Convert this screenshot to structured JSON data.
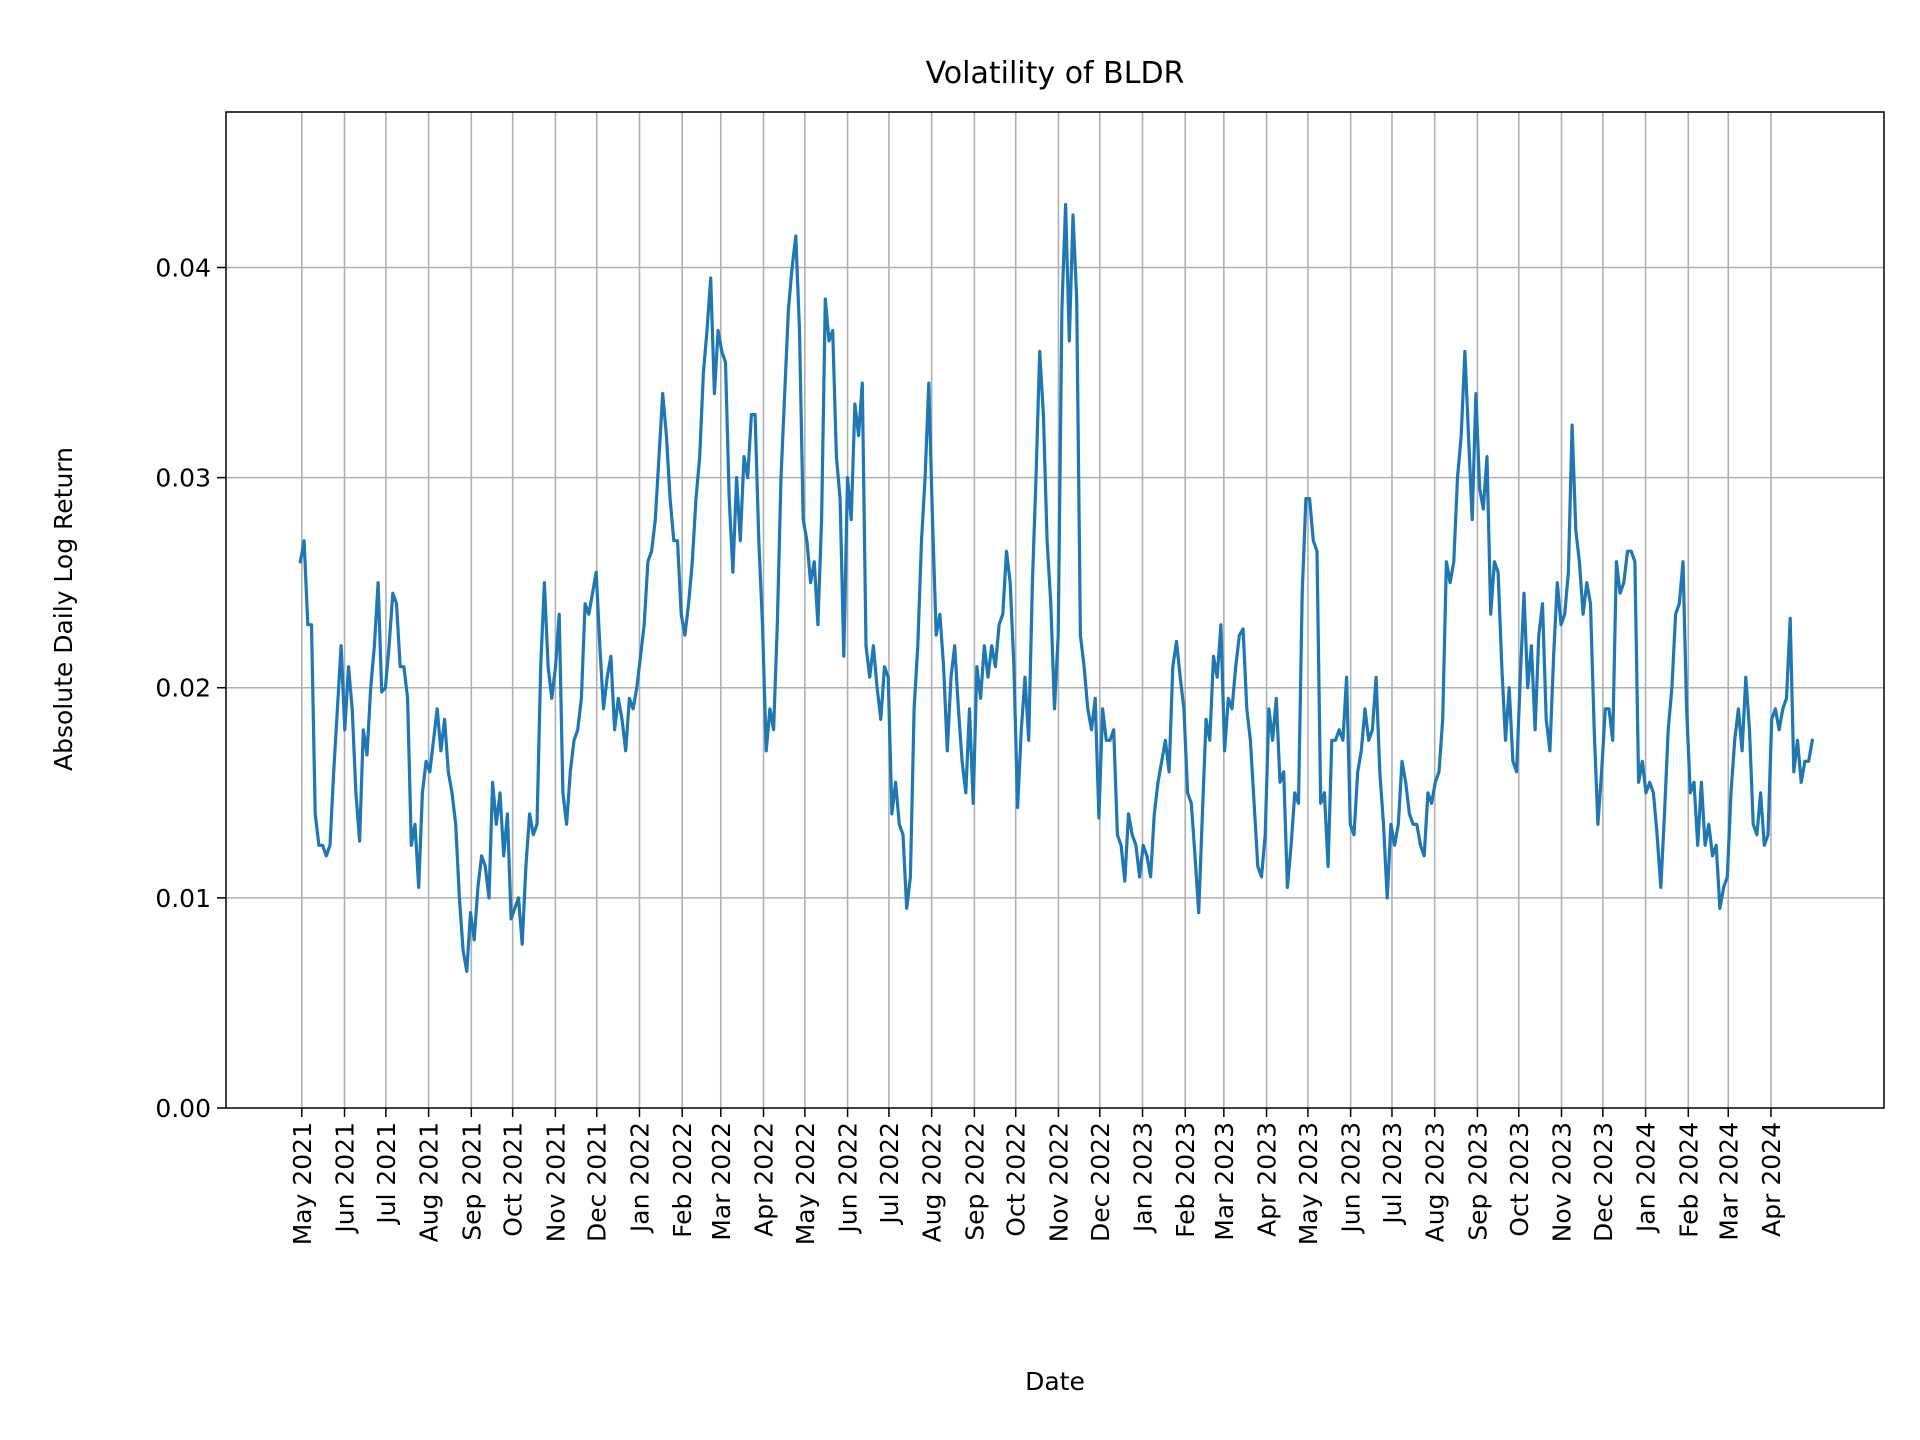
{
  "chart_data": {
    "type": "line",
    "title": "Volatility of BLDR",
    "xlabel": "Date",
    "ylabel": "Absolute Daily Log Return",
    "ylim": [
      0,
      0.0474
    ],
    "xlim": [
      "2021-03-07",
      "2024-06-22"
    ],
    "grid": true,
    "line_color": "#1f77b4",
    "grid_color": "#b0b0b0",
    "y_ticks": [
      {
        "value": 0.0,
        "label": "0.00"
      },
      {
        "value": 0.01,
        "label": "0.01"
      },
      {
        "value": 0.02,
        "label": "0.02"
      },
      {
        "value": 0.03,
        "label": "0.03"
      },
      {
        "value": 0.04,
        "label": "0.04"
      }
    ],
    "x_ticks": [
      {
        "date": "2021-05-01",
        "label": "May 2021"
      },
      {
        "date": "2021-06-01",
        "label": "Jun 2021"
      },
      {
        "date": "2021-07-01",
        "label": "Jul 2021"
      },
      {
        "date": "2021-08-01",
        "label": "Aug 2021"
      },
      {
        "date": "2021-09-01",
        "label": "Sep 2021"
      },
      {
        "date": "2021-10-01",
        "label": "Oct 2021"
      },
      {
        "date": "2021-11-01",
        "label": "Nov 2021"
      },
      {
        "date": "2021-12-01",
        "label": "Dec 2021"
      },
      {
        "date": "2022-01-01",
        "label": "Jan 2022"
      },
      {
        "date": "2022-02-01",
        "label": "Feb 2022"
      },
      {
        "date": "2022-03-01",
        "label": "Mar 2022"
      },
      {
        "date": "2022-04-01",
        "label": "Apr 2022"
      },
      {
        "date": "2022-05-01",
        "label": "May 2022"
      },
      {
        "date": "2022-06-01",
        "label": "Jun 2022"
      },
      {
        "date": "2022-07-01",
        "label": "Jul 2022"
      },
      {
        "date": "2022-08-01",
        "label": "Aug 2022"
      },
      {
        "date": "2022-09-01",
        "label": "Sep 2022"
      },
      {
        "date": "2022-10-01",
        "label": "Oct 2022"
      },
      {
        "date": "2022-11-01",
        "label": "Nov 2022"
      },
      {
        "date": "2022-12-01",
        "label": "Dec 2022"
      },
      {
        "date": "2023-01-01",
        "label": "Jan 2023"
      },
      {
        "date": "2023-02-01",
        "label": "Feb 2023"
      },
      {
        "date": "2023-03-01",
        "label": "Mar 2023"
      },
      {
        "date": "2023-04-01",
        "label": "Apr 2023"
      },
      {
        "date": "2023-05-01",
        "label": "May 2023"
      },
      {
        "date": "2023-06-01",
        "label": "Jun 2023"
      },
      {
        "date": "2023-07-01",
        "label": "Jul 2023"
      },
      {
        "date": "2023-08-01",
        "label": "Aug 2023"
      },
      {
        "date": "2023-09-01",
        "label": "Sep 2023"
      },
      {
        "date": "2023-10-01",
        "label": "Oct 2023"
      },
      {
        "date": "2023-11-01",
        "label": "Nov 2023"
      },
      {
        "date": "2023-12-01",
        "label": "Dec 2023"
      },
      {
        "date": "2024-01-01",
        "label": "Jan 2024"
      },
      {
        "date": "2024-02-01",
        "label": "Feb 2024"
      },
      {
        "date": "2024-03-01",
        "label": "Mar 2024"
      },
      {
        "date": "2024-04-01",
        "label": "Apr 2024"
      }
    ],
    "series": [
      {
        "start_date": "2021-04-30",
        "end_date": "2024-05-01",
        "values": [
          0.026,
          0.027,
          0.023,
          0.023,
          0.014,
          0.0125,
          0.0125,
          0.012,
          0.0125,
          0.016,
          0.019,
          0.022,
          0.018,
          0.021,
          0.019,
          0.015,
          0.0127,
          0.018,
          0.0168,
          0.02,
          0.022,
          0.025,
          0.0198,
          0.02,
          0.022,
          0.0245,
          0.024,
          0.021,
          0.021,
          0.0195,
          0.0125,
          0.0135,
          0.0105,
          0.015,
          0.0165,
          0.016,
          0.0175,
          0.019,
          0.017,
          0.0185,
          0.016,
          0.015,
          0.0135,
          0.01,
          0.0075,
          0.0065,
          0.0093,
          0.008,
          0.0105,
          0.012,
          0.0115,
          0.01,
          0.0155,
          0.0135,
          0.015,
          0.012,
          0.014,
          0.009,
          0.0095,
          0.01,
          0.0078,
          0.0115,
          0.014,
          0.013,
          0.0135,
          0.021,
          0.025,
          0.021,
          0.0195,
          0.021,
          0.0235,
          0.015,
          0.0135,
          0.016,
          0.0175,
          0.018,
          0.0195,
          0.024,
          0.0235,
          0.0245,
          0.0255,
          0.022,
          0.019,
          0.0205,
          0.0215,
          0.018,
          0.0195,
          0.0185,
          0.017,
          0.0195,
          0.019,
          0.02,
          0.0215,
          0.023,
          0.026,
          0.0265,
          0.028,
          0.031,
          0.034,
          0.032,
          0.029,
          0.027,
          0.027,
          0.0235,
          0.0225,
          0.024,
          0.026,
          0.029,
          0.031,
          0.035,
          0.037,
          0.0395,
          0.034,
          0.037,
          0.036,
          0.0355,
          0.029,
          0.0255,
          0.03,
          0.027,
          0.031,
          0.03,
          0.033,
          0.033,
          0.027,
          0.023,
          0.017,
          0.019,
          0.018,
          0.023,
          0.03,
          0.034,
          0.038,
          0.04,
          0.0415,
          0.037,
          0.028,
          0.027,
          0.025,
          0.026,
          0.023,
          0.028,
          0.0385,
          0.0365,
          0.037,
          0.031,
          0.029,
          0.0215,
          0.03,
          0.028,
          0.0335,
          0.032,
          0.0345,
          0.022,
          0.0205,
          0.022,
          0.02,
          0.0185,
          0.021,
          0.0205,
          0.014,
          0.0155,
          0.0135,
          0.013,
          0.0095,
          0.011,
          0.019,
          0.022,
          0.027,
          0.03,
          0.0345,
          0.028,
          0.0225,
          0.0235,
          0.021,
          0.017,
          0.0205,
          0.022,
          0.019,
          0.0165,
          0.015,
          0.019,
          0.0145,
          0.021,
          0.0195,
          0.022,
          0.0205,
          0.022,
          0.021,
          0.023,
          0.0235,
          0.0265,
          0.025,
          0.021,
          0.0143,
          0.018,
          0.0205,
          0.0175,
          0.025,
          0.03,
          0.036,
          0.033,
          0.027,
          0.024,
          0.019,
          0.0225,
          0.038,
          0.043,
          0.0365,
          0.0425,
          0.0385,
          0.0225,
          0.021,
          0.019,
          0.018,
          0.0195,
          0.0138,
          0.019,
          0.0175,
          0.0175,
          0.018,
          0.013,
          0.0125,
          0.0108,
          0.014,
          0.013,
          0.0125,
          0.011,
          0.0125,
          0.012,
          0.011,
          0.014,
          0.0155,
          0.0165,
          0.0175,
          0.016,
          0.021,
          0.0222,
          0.0205,
          0.019,
          0.015,
          0.0145,
          0.012,
          0.0093,
          0.014,
          0.0185,
          0.0175,
          0.0215,
          0.0205,
          0.023,
          0.017,
          0.0195,
          0.019,
          0.021,
          0.0225,
          0.0228,
          0.019,
          0.0175,
          0.0145,
          0.0115,
          0.011,
          0.013,
          0.019,
          0.0175,
          0.0195,
          0.0155,
          0.016,
          0.0105,
          0.0125,
          0.015,
          0.0145,
          0.0245,
          0.029,
          0.029,
          0.027,
          0.0265,
          0.0145,
          0.015,
          0.0115,
          0.0175,
          0.0175,
          0.018,
          0.0175,
          0.0205,
          0.0135,
          0.013,
          0.016,
          0.017,
          0.019,
          0.0175,
          0.018,
          0.0205,
          0.016,
          0.0135,
          0.01,
          0.0135,
          0.0125,
          0.0135,
          0.0165,
          0.0155,
          0.014,
          0.0135,
          0.0135,
          0.0125,
          0.012,
          0.015,
          0.0145,
          0.0155,
          0.016,
          0.0185,
          0.026,
          0.025,
          0.026,
          0.03,
          0.032,
          0.036,
          0.032,
          0.028,
          0.034,
          0.0295,
          0.0285,
          0.031,
          0.0235,
          0.026,
          0.0255,
          0.021,
          0.0175,
          0.02,
          0.0165,
          0.016,
          0.0205,
          0.0245,
          0.02,
          0.022,
          0.018,
          0.0225,
          0.024,
          0.0185,
          0.017,
          0.0215,
          0.025,
          0.023,
          0.0235,
          0.0255,
          0.0325,
          0.0275,
          0.026,
          0.0235,
          0.025,
          0.024,
          0.018,
          0.0135,
          0.016,
          0.019,
          0.019,
          0.0175,
          0.026,
          0.0245,
          0.025,
          0.0265,
          0.0265,
          0.026,
          0.0155,
          0.0165,
          0.015,
          0.0155,
          0.015,
          0.013,
          0.0105,
          0.014,
          0.018,
          0.02,
          0.0235,
          0.024,
          0.026,
          0.019,
          0.015,
          0.0155,
          0.0125,
          0.0155,
          0.0125,
          0.0135,
          0.012,
          0.0125,
          0.0095,
          0.0105,
          0.011,
          0.015,
          0.0175,
          0.019,
          0.017,
          0.0205,
          0.018,
          0.0135,
          0.013,
          0.015,
          0.0125,
          0.013,
          0.0185,
          0.019,
          0.018,
          0.019,
          0.0195,
          0.0233,
          0.016,
          0.0175,
          0.0155,
          0.0165,
          0.0165,
          0.0175
        ]
      }
    ]
  }
}
